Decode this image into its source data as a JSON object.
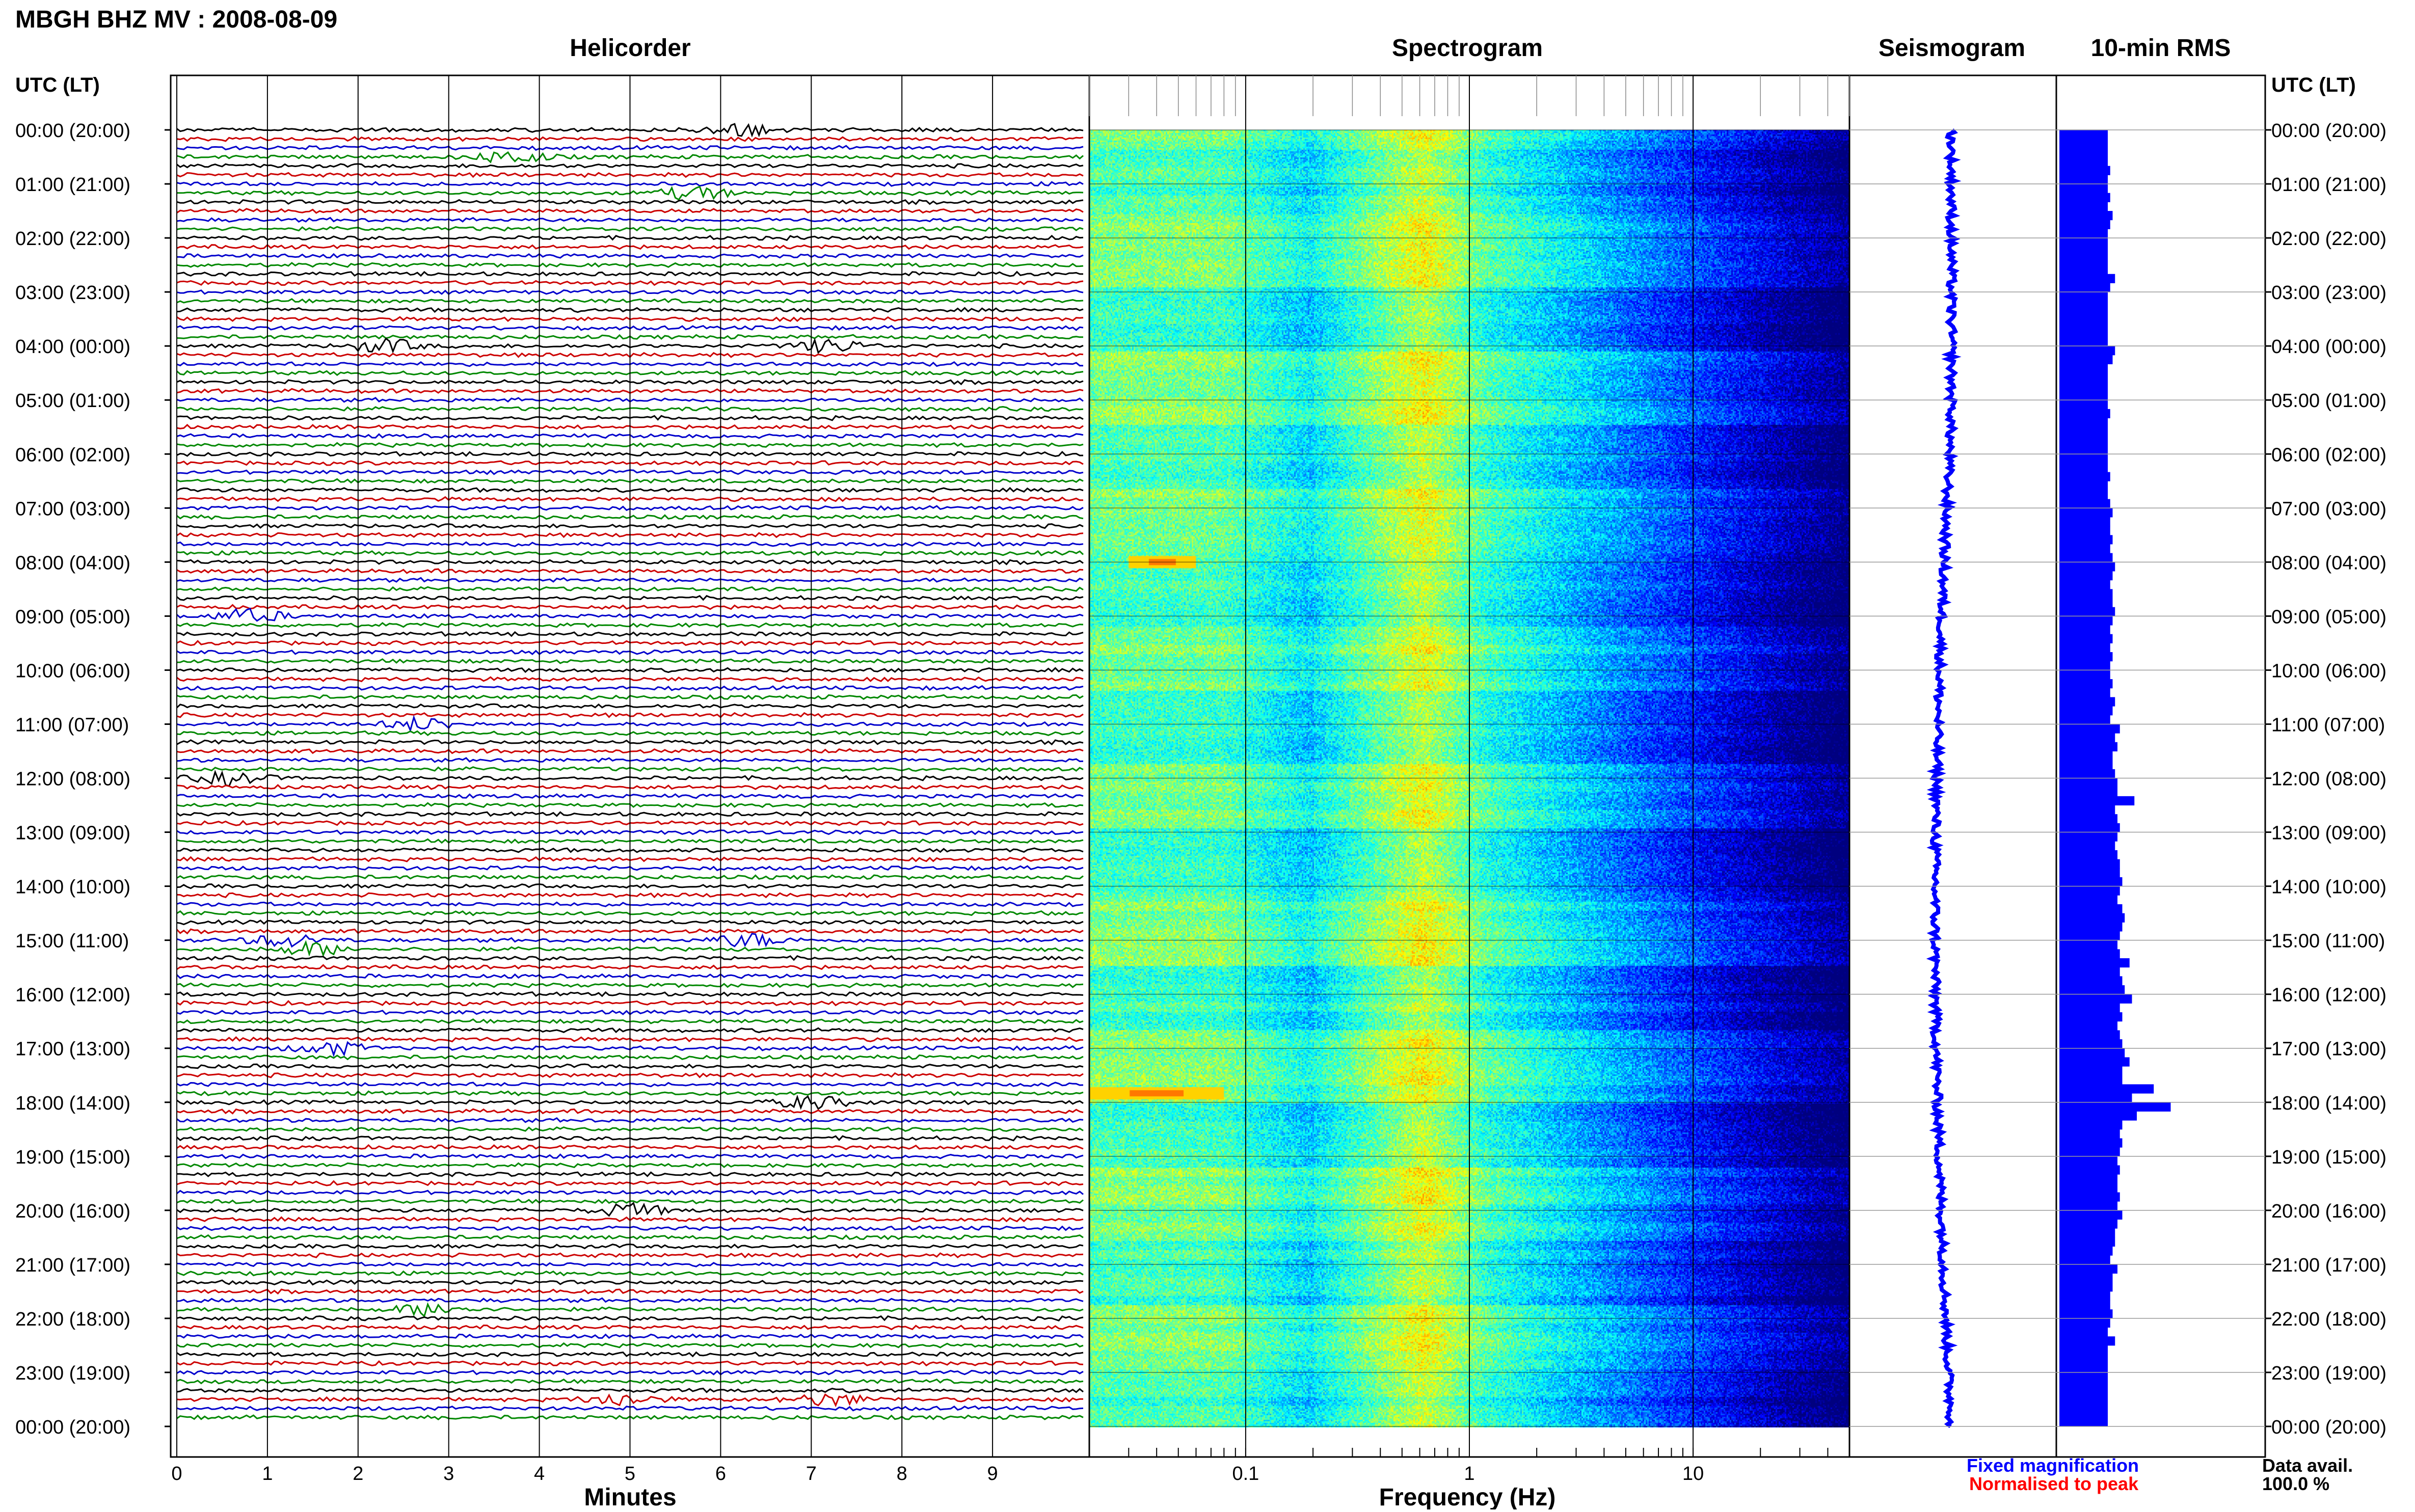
{
  "header": {
    "title": "MBGH BHZ MV : 2008-08-09"
  },
  "time_axis": {
    "label": "UTC (LT)",
    "ticks": [
      "00:00 (20:00)",
      "01:00 (21:00)",
      "02:00 (22:00)",
      "03:00 (23:00)",
      "04:00 (00:00)",
      "05:00 (01:00)",
      "06:00 (02:00)",
      "07:00 (03:00)",
      "08:00 (04:00)",
      "09:00 (05:00)",
      "10:00 (06:00)",
      "11:00 (07:00)",
      "12:00 (08:00)",
      "13:00 (09:00)",
      "14:00 (10:00)",
      "15:00 (11:00)",
      "16:00 (12:00)",
      "17:00 (13:00)",
      "18:00 (14:00)",
      "19:00 (15:00)",
      "20:00 (16:00)",
      "21:00 (17:00)",
      "22:00 (18:00)",
      "23:00 (19:00)",
      "00:00 (20:00)"
    ]
  },
  "panels": {
    "helicorder": {
      "title": "Helicorder",
      "xlabel": "Minutes",
      "xticks": [
        "0",
        "1",
        "2",
        "3",
        "4",
        "5",
        "6",
        "7",
        "8",
        "9"
      ],
      "trace_colors": [
        "#000000",
        "#cc0000",
        "#0000cc",
        "#008800"
      ]
    },
    "spectrogram": {
      "title": "Spectrogram",
      "xlabel": "Frequency (Hz)",
      "xticks": [
        "0.1",
        "1",
        "10"
      ],
      "scale": "log"
    },
    "seismogram": {
      "title": "Seismogram",
      "color": "#0000ff"
    },
    "rms": {
      "title": "10-min RMS",
      "color": "#0000ff"
    }
  },
  "legend": {
    "fixed": {
      "label": "Fixed magnification",
      "color": "#0000ff"
    },
    "normalised": {
      "label": "Normalised to peak",
      "color": "#ff0000"
    }
  },
  "data_avail": {
    "label": "Data avail.",
    "value": "100.0 %"
  },
  "chart_data": [
    {
      "type": "line",
      "title": "Helicorder",
      "xlabel": "Minutes",
      "xlim": [
        0,
        10
      ],
      "rows": 144,
      "events": [
        {
          "utc": "00:00",
          "minute": 6.2
        },
        {
          "utc": "00:30",
          "minute": 3.7
        },
        {
          "utc": "01:10",
          "minute": 5.7
        },
        {
          "utc": "04:00",
          "minute": 2.3
        },
        {
          "utc": "04:00",
          "minute": 7.2
        },
        {
          "utc": "09:00",
          "minute": 0.8
        },
        {
          "utc": "11:00",
          "minute": 2.7
        },
        {
          "utc": "12:00",
          "minute": 0.6
        },
        {
          "utc": "15:00",
          "minute": 1.2
        },
        {
          "utc": "15:00",
          "minute": 6.3
        },
        {
          "utc": "15:10",
          "minute": 1.5
        },
        {
          "utc": "17:00",
          "minute": 1.7
        },
        {
          "utc": "18:00",
          "minute": 7.0
        },
        {
          "utc": "20:00",
          "minute": 5.0
        },
        {
          "utc": "21:50",
          "minute": 2.8
        },
        {
          "utc": "23:30",
          "minute": 7.2
        },
        {
          "utc": "23:30",
          "minute": 4.9
        }
      ]
    },
    {
      "type": "heatmap",
      "title": "Spectrogram",
      "xlabel": "Frequency (Hz)",
      "xscale": "log",
      "xlim": [
        0.02,
        50
      ],
      "high_energy": [
        {
          "utc": "08:00",
          "hz": [
            0.03,
            0.06
          ]
        },
        {
          "utc": "17:50",
          "hz": [
            0.02,
            0.08
          ]
        }
      ]
    },
    {
      "type": "bar",
      "title": "10-min RMS",
      "series": [
        {
          "values": [
            1.0,
            1.0,
            1.0,
            1.0,
            1.05,
            1.0,
            1.0,
            1.05,
            1.0,
            1.1,
            1.05,
            1.0,
            1.0,
            1.0,
            1.0,
            1.0,
            1.15,
            1.05,
            1.0,
            1.0,
            1.0,
            1.0,
            1.0,
            1.0,
            1.15,
            1.1,
            1.0,
            1.0,
            1.0,
            1.0,
            1.0,
            1.05,
            1.0,
            1.0,
            1.0,
            1.0,
            1.0,
            1.0,
            1.05,
            1.0,
            1.0,
            1.05,
            1.1,
            1.05,
            1.05,
            1.1,
            1.05,
            1.1,
            1.15,
            1.1,
            1.05,
            1.1,
            1.1,
            1.15,
            1.1,
            1.05,
            1.1,
            1.05,
            1.1,
            1.05,
            1.05,
            1.1,
            1.05,
            1.15,
            1.1,
            1.05,
            1.25,
            1.15,
            1.2,
            1.1,
            1.1,
            1.15,
            1.2,
            1.2,
            1.55,
            1.15,
            1.2,
            1.25,
            1.2,
            1.15,
            1.2,
            1.25,
            1.25,
            1.3,
            1.25,
            1.2,
            1.3,
            1.35,
            1.3,
            1.25,
            1.2,
            1.25,
            1.45,
            1.25,
            1.3,
            1.35,
            1.5,
            1.25,
            1.3,
            1.2,
            1.25,
            1.3,
            1.35,
            1.45,
            1.3,
            1.3,
            1.95,
            1.5,
            2.3,
            1.6,
            1.3,
            1.25,
            1.3,
            1.25,
            1.2,
            1.25,
            1.2,
            1.2,
            1.25,
            1.2,
            1.3,
            1.2,
            1.15,
            1.15,
            1.1,
            1.05,
            1.2,
            1.1,
            1.1,
            1.05,
            1.05,
            1.1,
            1.05,
            1.0,
            1.15,
            1.0,
            1.0,
            1.0,
            1.0,
            1.0,
            1.0,
            1.0,
            1.0,
            1.0
          ]
        }
      ]
    }
  ]
}
